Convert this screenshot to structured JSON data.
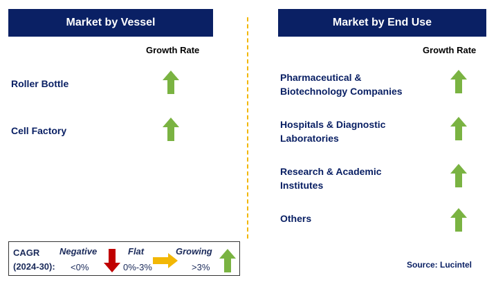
{
  "colors": {
    "header_bg": "#0a2064",
    "label_text": "#0a2064",
    "arrow_up": "#7ab342",
    "arrow_down": "#c00000",
    "arrow_flat": "#f2b705",
    "divider": "#f2b705"
  },
  "left_panel": {
    "title": "Market by Vessel",
    "growth_label": "Growth Rate",
    "items": [
      {
        "label": "Roller Bottle",
        "trend": "growing",
        "icon": "up-arrow-icon"
      },
      {
        "label": "Cell Factory",
        "trend": "growing",
        "icon": "up-arrow-icon"
      }
    ]
  },
  "right_panel": {
    "title": "Market by End Use",
    "growth_label": "Growth Rate",
    "items": [
      {
        "label_line1": "Pharmaceutical &",
        "label_line2": "Biotechnology Companies",
        "trend": "growing",
        "icon": "up-arrow-icon"
      },
      {
        "label_line1": "Hospitals & Diagnostic",
        "label_line2": "Laboratories",
        "trend": "growing",
        "icon": "up-arrow-icon"
      },
      {
        "label_line1": "Research & Academic",
        "label_line2": "Institutes",
        "trend": "growing",
        "icon": "up-arrow-icon"
      },
      {
        "label_line1": "Others",
        "label_line2": "",
        "trend": "growing",
        "icon": "up-arrow-icon"
      }
    ]
  },
  "legend": {
    "cagr_line1": "CAGR",
    "cagr_line2": "(2024-30):",
    "negative": {
      "label": "Negative",
      "range": "<0%",
      "icon": "down-arrow-icon"
    },
    "flat": {
      "label": "Flat",
      "range": "0%-3%",
      "icon": "right-arrow-icon"
    },
    "growing": {
      "label": "Growing",
      "range": ">3%",
      "icon": "up-arrow-icon"
    }
  },
  "source": "Source: Lucintel"
}
